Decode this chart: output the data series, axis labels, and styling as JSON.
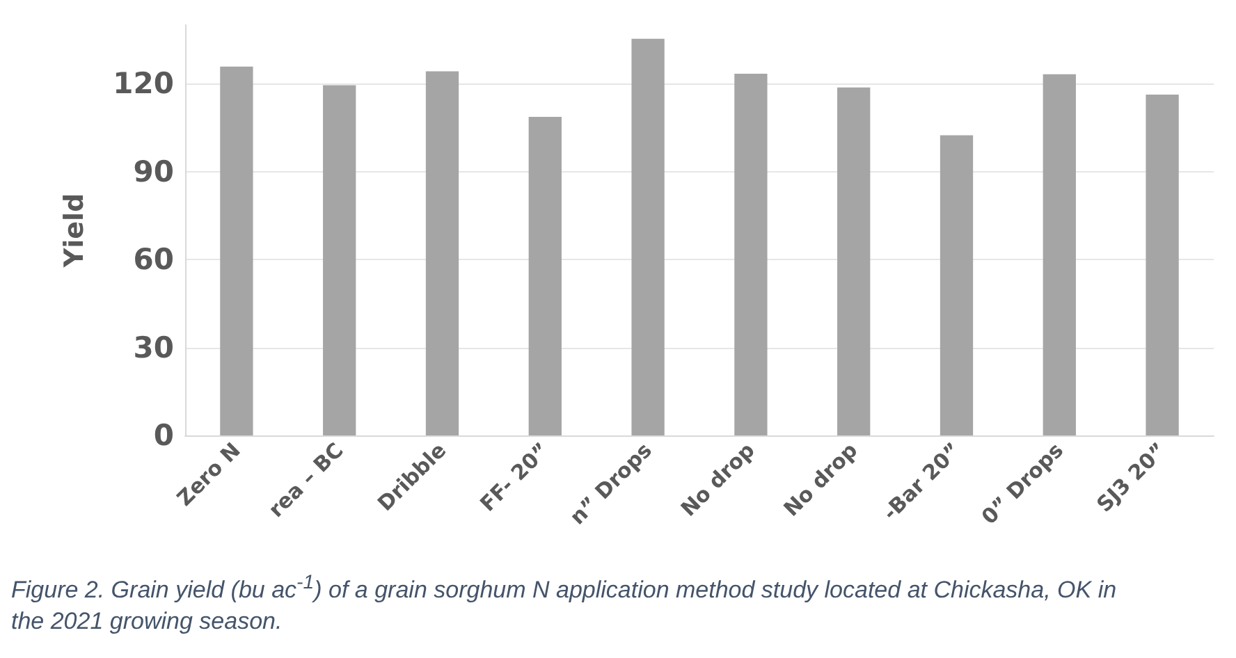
{
  "chart_data": {
    "type": "bar",
    "ylabel": "Yield",
    "categories": [
      "Zero N",
      "rea – BC",
      "Dribble",
      "FF- 20”",
      "n” Drops",
      "No drop",
      "No drop",
      "-Bar 20”",
      "0” Drops",
      "SJ3 20”"
    ],
    "values": [
      125.8,
      119.5,
      124.2,
      108.7,
      135.3,
      123.4,
      118.7,
      102.4,
      123.2,
      116.3
    ],
    "color": "#a5a5a5",
    "ylim": [
      0,
      140
    ],
    "yticks": [
      0,
      30,
      60,
      90,
      120
    ],
    "grid": "y",
    "annotations": [
      "Figure 2. Grain yield (bu ac$^{-1}$) of a grain sorghum N application method study located at Chickasha, OK in the 2021 growing season."
    ]
  }
}
